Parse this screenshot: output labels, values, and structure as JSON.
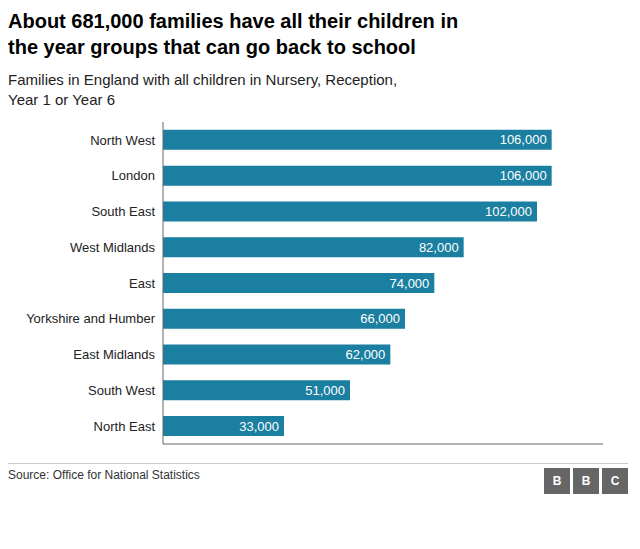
{
  "chart_data": {
    "type": "bar",
    "orientation": "horizontal",
    "title": "About 681,000 families have all their children in\nthe year groups that can go back to school",
    "subtitle": "Families in England with all children in Nursery, Reception,\nYear 1 or Year 6",
    "source": "Source: Office for National Statistics",
    "logo": [
      "B",
      "B",
      "C"
    ],
    "categories": [
      "North East",
      "South West",
      "East Midlands",
      "Yorkshire and Humber",
      "East",
      "West Midlands",
      "South East",
      "London",
      "North West"
    ],
    "values": [
      33000,
      51000,
      62000,
      66000,
      74000,
      82000,
      102000,
      106000,
      106000
    ],
    "value_labels": [
      "33,000",
      "51,000",
      "62,000",
      "66,000",
      "74,000",
      "82,000",
      "102,000",
      "106,000",
      "106,000"
    ],
    "data_labels": true,
    "color": "#1a7fa0",
    "xlim": [
      0,
      120000
    ],
    "tick_labels": "y",
    "grid": false
  }
}
